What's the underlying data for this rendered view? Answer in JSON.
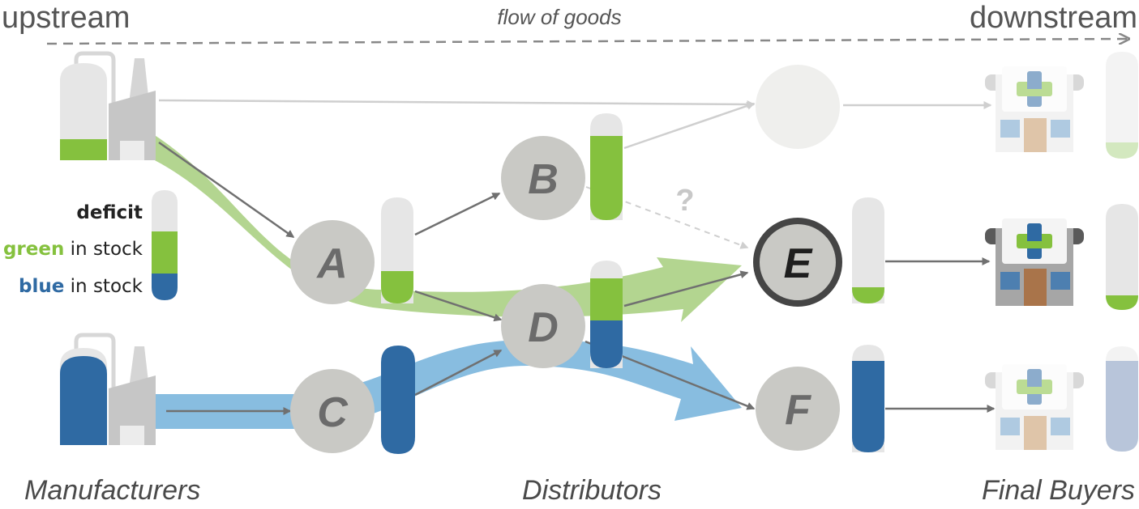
{
  "header": {
    "upstream": "upstream",
    "downstream": "downstream",
    "flow_label": "flow of goods"
  },
  "legend": {
    "deficit": "deficit",
    "green_word": "green",
    "green_rest": " in stock",
    "blue_word": "blue",
    "blue_rest": " in stock"
  },
  "nodes": {
    "a": "A",
    "b": "B",
    "c": "C",
    "d": "D",
    "e": "E",
    "f": "F"
  },
  "uncertain_mark": "?",
  "captions": {
    "manufacturers": "Manufacturers",
    "distributors": "Distributors",
    "final_buyers": "Final Buyers"
  },
  "colors": {
    "green": "#85c13e",
    "blue": "#2f6aa3",
    "green_flow": "#b3d590",
    "blue_flow": "#88bde0",
    "deficit": "#e6e6e6",
    "node_fill": "#c9c9c5",
    "arrow": "#707070"
  },
  "inventory_levels": {
    "green_manufacturer": {
      "green": 0.22
    },
    "blue_manufacturer": {
      "blue": 0.9
    },
    "a": {
      "green": 0.33
    },
    "b": {
      "green": 0.8
    },
    "c": {
      "blue": 1.0
    },
    "d": {
      "green": 0.45,
      "blue": 0.45
    },
    "e": {
      "green": 0.15
    },
    "f": {
      "blue": 0.82
    },
    "buyer_top": {
      "green": 0.15
    },
    "buyer_middle": {
      "green": 0.15
    },
    "buyer_bottom": {
      "blue": 0.9
    }
  }
}
